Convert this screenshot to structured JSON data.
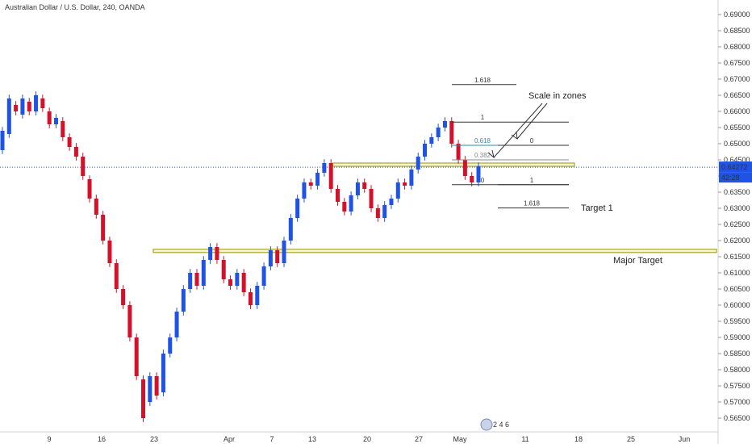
{
  "chart_data": {
    "type": "candlestick",
    "title": "Australian Dollar / U.S. Dollar, 240, OANDA",
    "x_ticks": [
      "9",
      "16",
      "23",
      "Apr",
      "7",
      "13",
      "20",
      "27",
      "May",
      "11",
      "18",
      "25",
      "Jun"
    ],
    "y_ticks": [
      "0.69000",
      "0.68500",
      "0.68000",
      "0.67500",
      "0.67000",
      "0.66500",
      "0.66000",
      "0.65500",
      "0.65000",
      "0.64500",
      "0.64000",
      "0.63500",
      "0.63000",
      "0.62500",
      "0.62000",
      "0.61500",
      "0.61000",
      "0.60500",
      "0.60000",
      "0.59500",
      "0.59000",
      "0.58500",
      "0.58000",
      "0.57500",
      "0.57000",
      "0.56500"
    ],
    "ylim": [
      0.5625,
      0.6905
    ],
    "current_price": "0.64272",
    "countdown": "42:28",
    "colors": {
      "up": "#1e53e5",
      "down": "#d5102a",
      "zone_fill": "#f6f5d8",
      "zone_border": "#a8a52a",
      "fib_mid": "#2d8ca6",
      "fib_zero": "#888888"
    },
    "zones": [
      {
        "name": "upper-zone",
        "low": 0.643,
        "high": 0.644
      },
      {
        "name": "major-zone",
        "low": 0.6163,
        "high": 0.6173
      }
    ],
    "fib_upper": [
      {
        "label": "1.618",
        "level": 0.6683
      },
      {
        "label": "1",
        "level": 0.6567
      },
      {
        "label": "0.618",
        "level": 0.6495
      },
      {
        "label": "0.382",
        "level": 0.645
      },
      {
        "label": "0",
        "level": 0.6373
      }
    ],
    "fib_lower": [
      {
        "label": "0",
        "level": 0.6495
      },
      {
        "label": "1",
        "level": 0.6373
      },
      {
        "label": "1.618",
        "level": 0.6301
      }
    ],
    "annotations": {
      "scale": "Scale in zones",
      "target1": "Target 1",
      "major": "Major Target"
    },
    "price_path": [
      [
        0.648,
        0.654
      ],
      [
        0.653,
        0.664
      ],
      [
        0.662,
        0.66
      ],
      [
        0.659,
        0.664
      ],
      [
        0.663,
        0.66
      ],
      [
        0.66,
        0.665
      ],
      [
        0.664,
        0.661
      ],
      [
        0.66,
        0.656
      ],
      [
        0.656,
        0.658
      ],
      [
        0.657,
        0.652
      ],
      [
        0.652,
        0.649
      ],
      [
        0.649,
        0.646
      ],
      [
        0.646,
        0.64
      ],
      [
        0.639,
        0.633
      ],
      [
        0.633,
        0.628
      ],
      [
        0.628,
        0.62
      ],
      [
        0.62,
        0.613
      ],
      [
        0.613,
        0.605
      ],
      [
        0.605,
        0.6
      ],
      [
        0.6,
        0.59
      ],
      [
        0.59,
        0.578
      ],
      [
        0.577,
        0.565
      ],
      [
        0.57,
        0.578
      ],
      [
        0.578,
        0.572
      ],
      [
        0.573,
        0.585
      ],
      [
        0.585,
        0.59
      ],
      [
        0.59,
        0.598
      ],
      [
        0.598,
        0.605
      ],
      [
        0.605,
        0.61
      ],
      [
        0.61,
        0.606
      ],
      [
        0.606,
        0.614
      ],
      [
        0.614,
        0.618
      ],
      [
        0.618,
        0.614
      ],
      [
        0.614,
        0.608
      ],
      [
        0.608,
        0.606
      ],
      [
        0.606,
        0.61
      ],
      [
        0.61,
        0.604
      ],
      [
        0.604,
        0.6
      ],
      [
        0.6,
        0.606
      ],
      [
        0.606,
        0.612
      ],
      [
        0.612,
        0.617
      ],
      [
        0.617,
        0.613
      ],
      [
        0.613,
        0.62
      ],
      [
        0.62,
        0.627
      ],
      [
        0.627,
        0.633
      ],
      [
        0.633,
        0.638
      ],
      [
        0.638,
        0.637
      ],
      [
        0.637,
        0.641
      ],
      [
        0.641,
        0.644
      ],
      [
        0.644,
        0.636
      ],
      [
        0.636,
        0.632
      ],
      [
        0.632,
        0.629
      ],
      [
        0.629,
        0.634
      ],
      [
        0.634,
        0.638
      ],
      [
        0.638,
        0.636
      ],
      [
        0.636,
        0.63
      ],
      [
        0.63,
        0.627
      ],
      [
        0.627,
        0.631
      ],
      [
        0.631,
        0.633
      ],
      [
        0.633,
        0.638
      ],
      [
        0.638,
        0.637
      ],
      [
        0.637,
        0.642
      ],
      [
        0.642,
        0.646
      ],
      [
        0.646,
        0.65
      ],
      [
        0.65,
        0.652
      ],
      [
        0.652,
        0.655
      ],
      [
        0.655,
        0.657
      ],
      [
        0.657,
        0.65
      ],
      [
        0.65,
        0.645
      ],
      [
        0.645,
        0.64
      ],
      [
        0.64,
        0.638
      ],
      [
        0.638,
        0.643
      ]
    ]
  },
  "toolbar": {
    "badge": "2 4 6"
  }
}
